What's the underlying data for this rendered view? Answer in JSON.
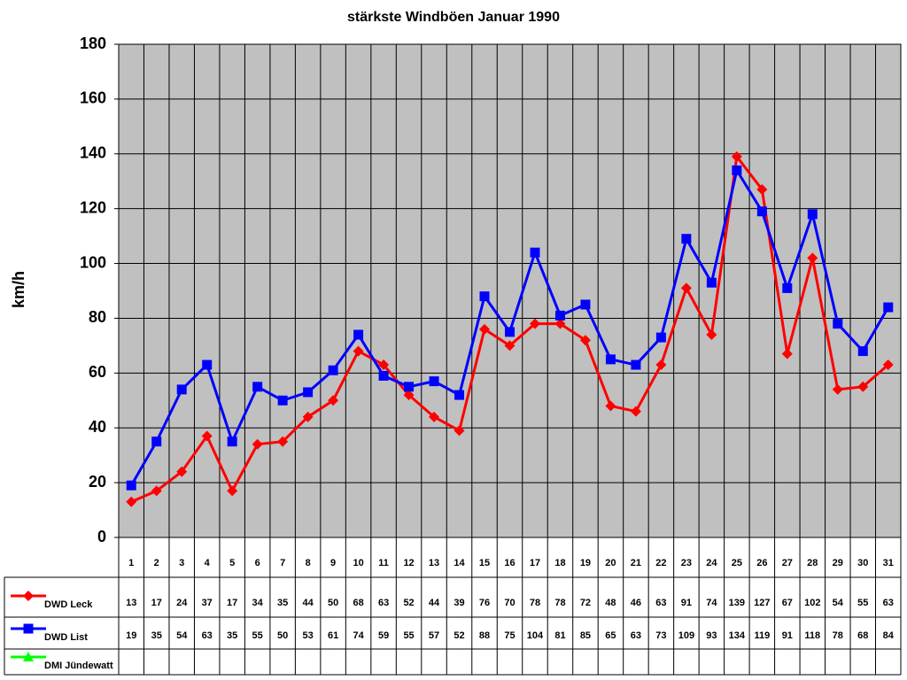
{
  "chart_data": {
    "type": "line",
    "title": "stärkste Windböen Januar 1990",
    "y_label": "km/h",
    "categories": [
      "1",
      "2",
      "3",
      "4",
      "5",
      "6",
      "7",
      "8",
      "9",
      "10",
      "11",
      "12",
      "13",
      "14",
      "15",
      "16",
      "17",
      "18",
      "19",
      "20",
      "21",
      "22",
      "23",
      "24",
      "25",
      "26",
      "27",
      "28",
      "29",
      "30",
      "31"
    ],
    "series": [
      {
        "name": "DWD Leck",
        "color": "#ff0000",
        "marker": "diamond",
        "values": [
          13,
          17,
          24,
          37,
          17,
          34,
          35,
          44,
          50,
          68,
          63,
          52,
          44,
          39,
          76,
          70,
          78,
          78,
          72,
          48,
          46,
          63,
          91,
          74,
          139,
          127,
          67,
          102,
          54,
          55,
          63
        ]
      },
      {
        "name": "DWD List",
        "color": "#0000ff",
        "marker": "square",
        "values": [
          19,
          35,
          54,
          63,
          35,
          55,
          50,
          53,
          61,
          74,
          59,
          55,
          57,
          52,
          88,
          75,
          104,
          81,
          85,
          65,
          63,
          73,
          109,
          93,
          134,
          119,
          91,
          118,
          78,
          68,
          84
        ]
      },
      {
        "name": "DMI Jündewatt",
        "color": "#00ff00",
        "marker": "triangle",
        "values": [
          null,
          null,
          null,
          null,
          null,
          null,
          null,
          null,
          null,
          null,
          null,
          null,
          null,
          null,
          null,
          null,
          null,
          null,
          null,
          null,
          null,
          null,
          null,
          null,
          null,
          null,
          null,
          null,
          null,
          null,
          null
        ]
      }
    ],
    "ylim": [
      0,
      180
    ],
    "yticks": [
      0,
      20,
      40,
      60,
      80,
      100,
      120,
      140,
      160,
      180
    ],
    "grid": true,
    "plot_background": "#c0c0c0",
    "data_table": true
  }
}
